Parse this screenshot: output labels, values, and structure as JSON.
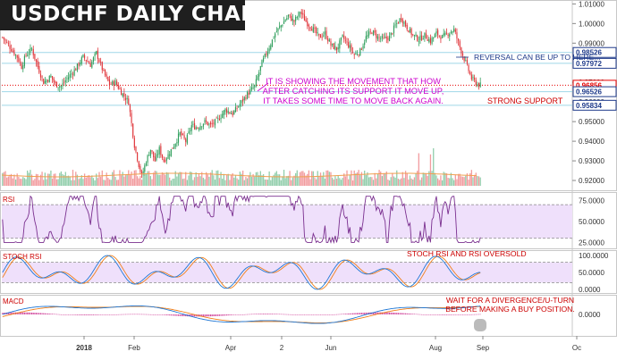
{
  "title": "USDCHF DAILY CHART",
  "chart_data": {
    "type": "candlestick",
    "instrument": "USDCHF",
    "timeframe": "Daily",
    "price_axis": {
      "ticks": [
        "1.01000",
        "1.00000",
        "0.99000",
        "0.97000",
        "0.96000",
        "0.95000",
        "0.94000",
        "0.93000",
        "0.92000"
      ],
      "range": [
        0.915,
        1.012
      ]
    },
    "price_tags": [
      {
        "label": "0.98526",
        "value": 0.98526,
        "color": "#1e3a8a"
      },
      {
        "label": "0.97972",
        "value": 0.97972,
        "color": "#1e3a8a"
      },
      {
        "label": "0.96856",
        "value": 0.96856,
        "color": "#e60000"
      },
      {
        "label": "0.96526",
        "value": 0.96526,
        "color": "#1e3a8a"
      },
      {
        "label": "0.95834",
        "value": 0.95834,
        "color": "#1e3a8a"
      }
    ],
    "x_axis_labels": [
      "2018",
      "Feb",
      "Apr",
      "2",
      "Jun",
      "Aug",
      "Sep",
      "Oc"
    ],
    "close_path": [
      [
        0,
        0.993
      ],
      [
        5,
        0.988
      ],
      [
        10,
        0.983
      ],
      [
        13,
        0.978
      ],
      [
        16,
        0.984
      ],
      [
        20,
        0.987
      ],
      [
        24,
        0.978
      ],
      [
        28,
        0.97
      ],
      [
        33,
        0.973
      ],
      [
        36,
        0.969
      ],
      [
        40,
        0.968
      ],
      [
        44,
        0.972
      ],
      [
        50,
        0.977
      ],
      [
        55,
        0.983
      ],
      [
        60,
        0.979
      ],
      [
        64,
        0.985
      ],
      [
        69,
        0.975
      ],
      [
        73,
        0.969
      ],
      [
        77,
        0.97
      ],
      [
        81,
        0.965
      ],
      [
        86,
        0.96
      ],
      [
        90,
        0.938
      ],
      [
        93,
        0.928
      ],
      [
        95,
        0.922
      ],
      [
        98,
        0.93
      ],
      [
        101,
        0.936
      ],
      [
        104,
        0.93
      ],
      [
        107,
        0.936
      ],
      [
        110,
        0.93
      ],
      [
        113,
        0.933
      ],
      [
        117,
        0.938
      ],
      [
        121,
        0.944
      ],
      [
        125,
        0.94
      ],
      [
        129,
        0.948
      ],
      [
        133,
        0.947
      ],
      [
        138,
        0.95
      ],
      [
        142,
        0.948
      ],
      [
        147,
        0.951
      ],
      [
        152,
        0.956
      ],
      [
        157,
        0.954
      ],
      [
        162,
        0.959
      ],
      [
        167,
        0.964
      ],
      [
        172,
        0.968
      ],
      [
        177,
        0.98
      ],
      [
        182,
        0.988
      ],
      [
        186,
        0.995
      ],
      [
        191,
        1.0
      ],
      [
        195,
        1.004
      ],
      [
        199,
        1.001
      ],
      [
        203,
        1.006
      ],
      [
        207,
        1.001
      ],
      [
        212,
        0.997
      ],
      [
        216,
        0.993
      ],
      [
        220,
        0.995
      ],
      [
        224,
        0.989
      ],
      [
        228,
        0.987
      ],
      [
        232,
        0.993
      ],
      [
        236,
        0.989
      ],
      [
        240,
        0.984
      ],
      [
        244,
        0.986
      ],
      [
        248,
        0.993
      ],
      [
        252,
        0.996
      ],
      [
        256,
        0.993
      ],
      [
        260,
        0.992
      ],
      [
        264,
        0.993
      ],
      [
        268,
        0.999
      ],
      [
        272,
        1.003
      ],
      [
        276,
        0.998
      ],
      [
        280,
        0.994
      ],
      [
        284,
        0.992
      ],
      [
        288,
        0.994
      ],
      [
        292,
        0.991
      ],
      [
        296,
        0.995
      ],
      [
        300,
        0.993
      ],
      [
        304,
        0.995
      ],
      [
        308,
        0.997
      ],
      [
        312,
        0.988
      ],
      [
        316,
        0.98
      ],
      [
        320,
        0.972
      ],
      [
        324,
        0.969
      ],
      [
        326,
        0.9686
      ]
    ],
    "panels": [
      {
        "name": "RSI",
        "axis_ticks": [
          "75.0000",
          "50.0000",
          "25.0000"
        ],
        "band": [
          30,
          70
        ]
      },
      {
        "name": "STOCH RSI",
        "axis_ticks": [
          "100.0000",
          "50.0000",
          "0.0000"
        ],
        "band": [
          20,
          80
        ]
      },
      {
        "name": "MACD",
        "axis_ticks": [
          "0.0000"
        ]
      }
    ]
  },
  "annotations": {
    "main_text": "IT IS SHOWING THE MOVEMENT THAT HOW AFTER CATCHING ITS SUPPORT IT MOVE UP, IT TAKES SOME TIME TO MOVE BACK AGAIN.",
    "reversal": "REVERSAL CAN BE UP TO HERE...",
    "support": "STRONG SUPPORT",
    "stoch": "STOCH RSI AND RSI OVERSOLD",
    "wait": "WAIT FOR A DIVERGENCE/U-TURN BEFORE MAKING A BUY POSITION."
  },
  "colors": {
    "bull": "#2e9e5b",
    "bear": "#e0363b",
    "band_fill": "#efe0fb",
    "rsi_line": "#7a2f8f",
    "stoch_k": "#1f77d4",
    "stoch_d": "#f07f1a",
    "level_line": "#9fd7e8",
    "last_price": "#e60000"
  }
}
